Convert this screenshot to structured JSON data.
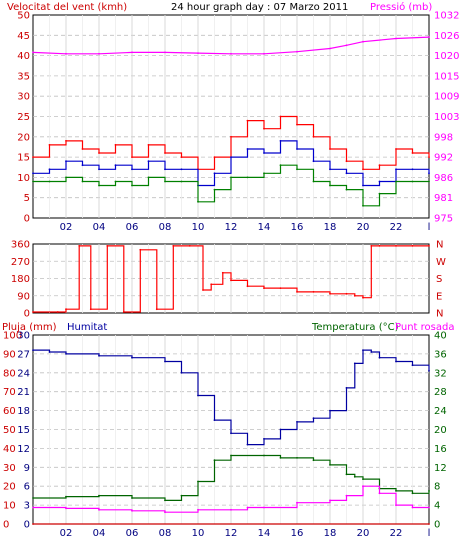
{
  "header": {
    "wind_label": "Velocitat del vent (kmh)",
    "title": "24 hour graph day : 07 Marzo 2011",
    "pressure_label": "Pressió (mb)",
    "rain_label": "Pluja (mm)",
    "humidity_label": "Humitat",
    "temp_label": "Temperatura (°C)",
    "dew_label": "Punt rosada"
  },
  "colors": {
    "wind": "#ff0000",
    "wind_avg": "#0000cc",
    "wind_min": "#008000",
    "pressure": "#ff00ff",
    "humidity": "#0000a0",
    "temperature": "#006400",
    "dewpoint": "#ff00ff",
    "direction": "#ff0000",
    "grid": "#c0c0c0",
    "axis_red": "#cc0000",
    "axis_magenta": "#ff00ff",
    "axis_green": "#006400"
  },
  "x_ticks": [
    "02",
    "04",
    "06",
    "08",
    "10",
    "12",
    "14",
    "16",
    "18",
    "20",
    "22",
    "l"
  ],
  "chart_data": [
    {
      "type": "line",
      "title": "24 hour graph day : 07 Marzo 2011",
      "xlim": [
        0,
        24
      ],
      "ylim": [
        0,
        50
      ],
      "y_ticks": [
        "50",
        "45",
        "40",
        "35",
        "30",
        "25",
        "20",
        "15",
        "10",
        "5",
        "0"
      ],
      "y2lim": [
        975,
        1032
      ],
      "y2_ticks": [
        "1032",
        "1026",
        "1020",
        "1015",
        "1009",
        "1003",
        "998",
        "992",
        "986",
        "981",
        "975"
      ],
      "series": [
        {
          "name": "Velocitat del vent (kmh)",
          "axis": "left",
          "x": [
            0,
            1,
            2,
            3,
            4,
            5,
            6,
            7,
            8,
            9,
            10,
            11,
            12,
            13,
            14,
            15,
            16,
            17,
            18,
            19,
            20,
            21,
            22,
            23,
            24
          ],
          "values": [
            15,
            18,
            19,
            17,
            16,
            18,
            15,
            18,
            16,
            15,
            12,
            15,
            20,
            24,
            22,
            25,
            23,
            20,
            17,
            14,
            12,
            13,
            17,
            16,
            15
          ]
        },
        {
          "axis": "left",
          "x": [
            0,
            1,
            2,
            3,
            4,
            5,
            6,
            7,
            8,
            9,
            10,
            11,
            12,
            13,
            14,
            15,
            16,
            17,
            18,
            19,
            20,
            21,
            22,
            23,
            24
          ],
          "values": [
            11,
            12,
            14,
            13,
            12,
            13,
            12,
            14,
            12,
            12,
            8,
            11,
            15,
            17,
            16,
            19,
            17,
            14,
            12,
            11,
            8,
            9,
            12,
            12,
            11
          ]
        },
        {
          "axis": "left",
          "x": [
            0,
            1,
            2,
            3,
            4,
            5,
            6,
            7,
            8,
            9,
            10,
            11,
            12,
            13,
            14,
            15,
            16,
            17,
            18,
            19,
            20,
            21,
            22,
            23,
            24
          ],
          "values": [
            9,
            9,
            10,
            9,
            8,
            9,
            8,
            10,
            9,
            9,
            4,
            7,
            10,
            10,
            11,
            13,
            12,
            9,
            8,
            7,
            3,
            6,
            9,
            9,
            9
          ]
        },
        {
          "name": "Pressió (mb)",
          "axis": "right",
          "x": [
            0,
            2,
            4,
            6,
            8,
            10,
            12,
            14,
            16,
            18,
            19,
            20,
            22,
            24
          ],
          "values": [
            1021.5,
            1021.1,
            1021.1,
            1021.5,
            1021.5,
            1021.3,
            1021.1,
            1021.1,
            1021.7,
            1022.6,
            1023.5,
            1024.5,
            1025.4,
            1025.8
          ]
        }
      ]
    },
    {
      "type": "line",
      "xlim": [
        0,
        24
      ],
      "ylim": [
        0,
        360
      ],
      "y_ticks": [
        "360",
        "270",
        "180",
        "90",
        "0"
      ],
      "y2_ticks": [
        "N",
        "W",
        "S",
        "E",
        "N"
      ],
      "series": [
        {
          "axis": "left",
          "x": [
            0,
            1.5,
            2,
            2.8,
            3.5,
            4.5,
            5.5,
            6.5,
            7.5,
            8.5,
            9.5,
            10.3,
            10.8,
            11.5,
            12,
            13,
            14,
            15,
            16,
            17,
            18,
            19,
            19.5,
            20,
            20.5,
            21,
            22,
            23,
            24
          ],
          "values": [
            5,
            5,
            20,
            350,
            20,
            350,
            5,
            330,
            20,
            350,
            350,
            120,
            150,
            210,
            170,
            140,
            130,
            130,
            110,
            110,
            100,
            100,
            90,
            80,
            350,
            350,
            350,
            350,
            350
          ]
        }
      ]
    },
    {
      "type": "line",
      "xlim": [
        0,
        24
      ],
      "ylim": [
        0,
        100
      ],
      "y_ticks": [
        "100",
        "90",
        "80",
        "70",
        "60",
        "50",
        "40",
        "30",
        "20",
        "10",
        "0"
      ],
      "y_ticks_inner": [
        "30",
        "27",
        "24",
        "21",
        "18",
        "15",
        "12",
        "9",
        "6",
        "3",
        "0"
      ],
      "y2lim": [
        0,
        40
      ],
      "y2_ticks": [
        "40",
        "36",
        "32",
        "28",
        "24",
        "20",
        "16",
        "12",
        "8",
        "4",
        "0"
      ],
      "series": [
        {
          "name": "Pluja (mm)",
          "axis": "inner_left",
          "x": [
            0,
            24
          ],
          "values": [
            0,
            0
          ]
        },
        {
          "name": "Humitat",
          "axis": "left",
          "x": [
            0,
            1,
            2,
            4,
            6,
            8,
            9,
            10,
            11,
            12,
            13,
            14,
            15,
            16,
            17,
            18,
            19,
            19.5,
            20,
            20.5,
            21,
            22,
            23,
            24
          ],
          "values": [
            92,
            91,
            90,
            89,
            88,
            86,
            80,
            68,
            55,
            48,
            42,
            45,
            50,
            54,
            56,
            60,
            72,
            85,
            92,
            91,
            88,
            86,
            84,
            81
          ]
        },
        {
          "name": "Temperatura (°C)",
          "axis": "right",
          "x": [
            0,
            2,
            4,
            6,
            8,
            9,
            10,
            11,
            12,
            14,
            15,
            16,
            17,
            18,
            19,
            19.5,
            20,
            21,
            22,
            23,
            24
          ],
          "values": [
            5.5,
            5.8,
            6,
            5.5,
            5,
            6,
            9,
            13.5,
            14.5,
            14.5,
            14,
            14,
            13.5,
            12.5,
            10.5,
            10,
            9.5,
            7.5,
            7,
            6.5,
            7
          ]
        },
        {
          "name": "Punt rosada",
          "axis": "right",
          "x": [
            0,
            2,
            4,
            6,
            8,
            10,
            12,
            13,
            14,
            16,
            18,
            19,
            20,
            21,
            22,
            23,
            24
          ],
          "values": [
            3.5,
            3.3,
            3,
            2.8,
            2.5,
            3,
            3,
            3.5,
            3.5,
            4.5,
            5,
            6,
            8,
            6.5,
            4,
            3.5,
            3.5
          ]
        }
      ]
    }
  ]
}
